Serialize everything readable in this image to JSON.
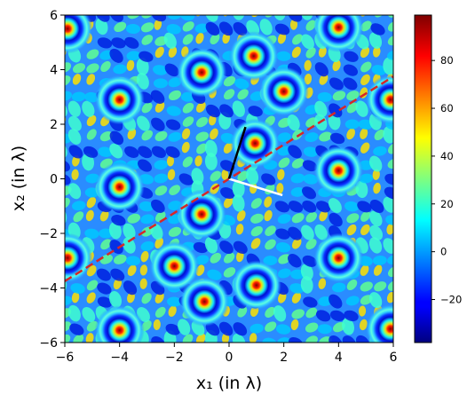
{
  "chart_data": {
    "type": "heatmap",
    "title": "",
    "xlabel": "x₁ (in λ)",
    "ylabel": "x₂ (in λ)",
    "xlim": [
      -6,
      6
    ],
    "ylim": [
      -6,
      6
    ],
    "x_ticks": [
      -6,
      -4,
      -2,
      0,
      2,
      4,
      6
    ],
    "y_ticks": [
      -6,
      -4,
      -2,
      0,
      2,
      4,
      6
    ],
    "colormap": "jet",
    "color_range": [
      -38,
      99
    ],
    "colorbar_ticks": [
      -20,
      0,
      20,
      40,
      60,
      80
    ],
    "peaks": [
      {
        "x": 4.0,
        "y": 5.55
      },
      {
        "x": -1.0,
        "y": 3.9
      },
      {
        "x": -4.0,
        "y": 2.9
      },
      {
        "x": 0.95,
        "y": 1.3
      },
      {
        "x": -4.0,
        "y": -0.3
      },
      {
        "x": -1.0,
        "y": -1.3
      },
      {
        "x": 4.0,
        "y": 0.3
      },
      {
        "x": 4.0,
        "y": -2.9
      },
      {
        "x": 1.0,
        "y": -3.9
      },
      {
        "x": -4.0,
        "y": -5.55
      },
      {
        "x": 0.9,
        "y": 4.5
      },
      {
        "x": 2.0,
        "y": 3.2
      },
      {
        "x": -5.9,
        "y": 5.5
      },
      {
        "x": -0.9,
        "y": -4.5
      },
      {
        "x": -2.0,
        "y": -3.2
      },
      {
        "x": 5.9,
        "y": -5.5
      },
      {
        "x": -5.9,
        "y": -2.9
      },
      {
        "x": 5.9,
        "y": 2.9
      }
    ],
    "vector_black": {
      "from": [
        0,
        0
      ],
      "to": [
        0.6,
        1.9
      ]
    },
    "vector_white": {
      "from": [
        0,
        0
      ],
      "to": [
        1.95,
        -0.6
      ]
    },
    "dashed_line": {
      "from": [
        -6,
        -3.75
      ],
      "to": [
        6,
        3.75
      ],
      "color": "#d62728"
    },
    "grid": false,
    "legend": "none"
  }
}
